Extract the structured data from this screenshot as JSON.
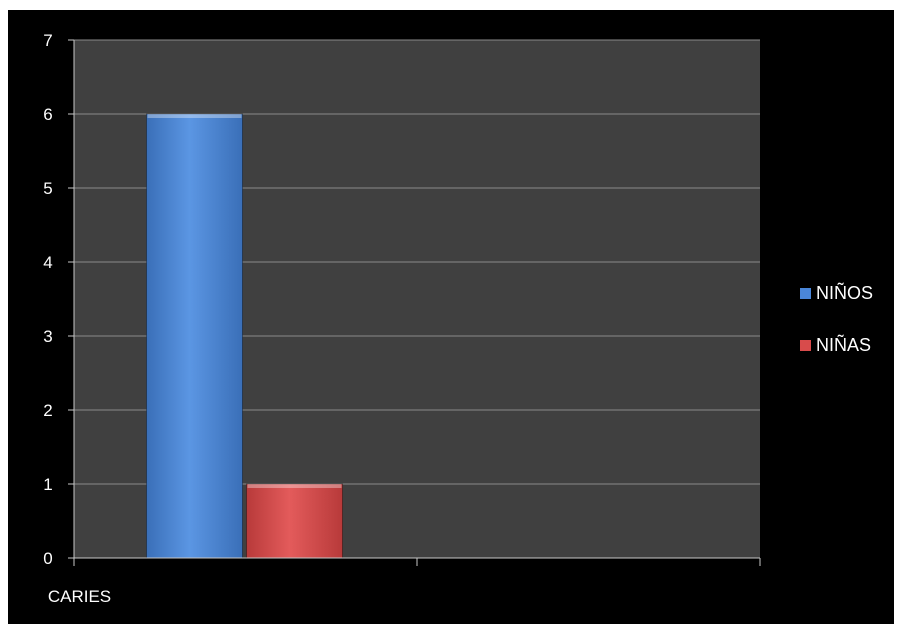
{
  "chart_data": {
    "type": "bar",
    "categories": [
      "CARIES",
      ""
    ],
    "series": [
      {
        "name": "NIÑOS",
        "values": [
          6,
          null
        ],
        "color": "#4a86d9"
      },
      {
        "name": "NIÑAS",
        "values": [
          1,
          null
        ],
        "color": "#d84b4b"
      }
    ],
    "ylim": [
      0,
      7
    ],
    "yticks": [
      0,
      1,
      2,
      3,
      4,
      5,
      6,
      7
    ],
    "grid": true,
    "legend": "right",
    "colors": {
      "background": "#000000",
      "plot_area": "#404040",
      "gridline": "#8a8a8a",
      "axis": "#c8c8c8",
      "text": "#ffffff"
    }
  }
}
